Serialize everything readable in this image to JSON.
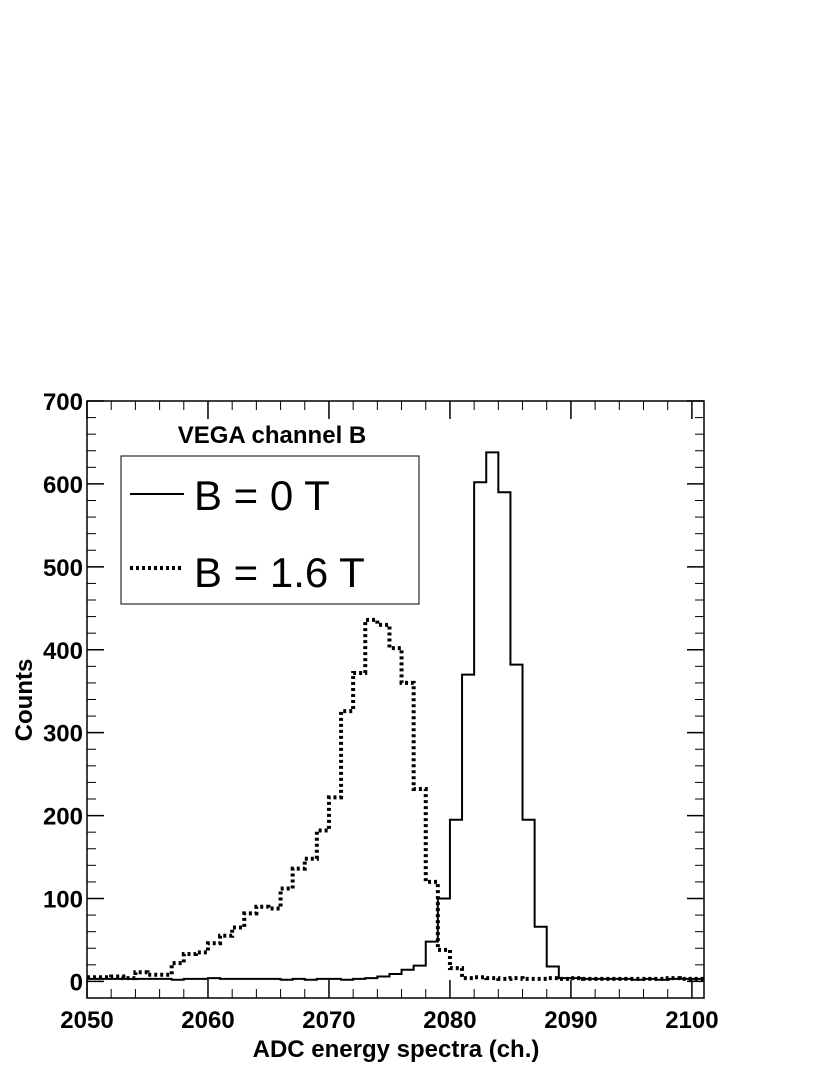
{
  "chart_data": {
    "type": "histogram",
    "title": "VEGA channel B",
    "xlabel": "ADC energy spectra (ch.)",
    "ylabel": "Counts",
    "xlim": [
      2050,
      2101
    ],
    "ylim": [
      -20,
      700
    ],
    "x_ticks": [
      2050,
      2060,
      2070,
      2080,
      2090,
      2100
    ],
    "y_ticks": [
      0,
      100,
      200,
      300,
      400,
      500,
      600,
      700
    ],
    "grid": false,
    "legend_position": "top-left",
    "bin_edges_start": 2050,
    "bin_width": 1,
    "series": [
      {
        "name": "B = 0 T",
        "style": "solid",
        "color": "#000000",
        "values": [
          3,
          3,
          3,
          3,
          3,
          3,
          3,
          2,
          3,
          3,
          4,
          3,
          3,
          3,
          3,
          3,
          2,
          3,
          2,
          3,
          3,
          2,
          3,
          4,
          6,
          9,
          14,
          19,
          48,
          100,
          195,
          370,
          602,
          638,
          590,
          382,
          195,
          66,
          18,
          4,
          4,
          3,
          3,
          3,
          3,
          2,
          3,
          2,
          3,
          3,
          3
        ]
      },
      {
        "name": "B = 1.6 T",
        "style": "dotted",
        "color": "#000000",
        "values": [
          5,
          5,
          6,
          4,
          11,
          8,
          8,
          22,
          33,
          35,
          46,
          55,
          65,
          82,
          90,
          88,
          112,
          136,
          148,
          182,
          222,
          326,
          372,
          436,
          430,
          402,
          360,
          232,
          120,
          38,
          16,
          4,
          5,
          4,
          3,
          4,
          3,
          3,
          4,
          3,
          4,
          3,
          3,
          3,
          3,
          3,
          3,
          3,
          4,
          3,
          3
        ]
      }
    ]
  }
}
